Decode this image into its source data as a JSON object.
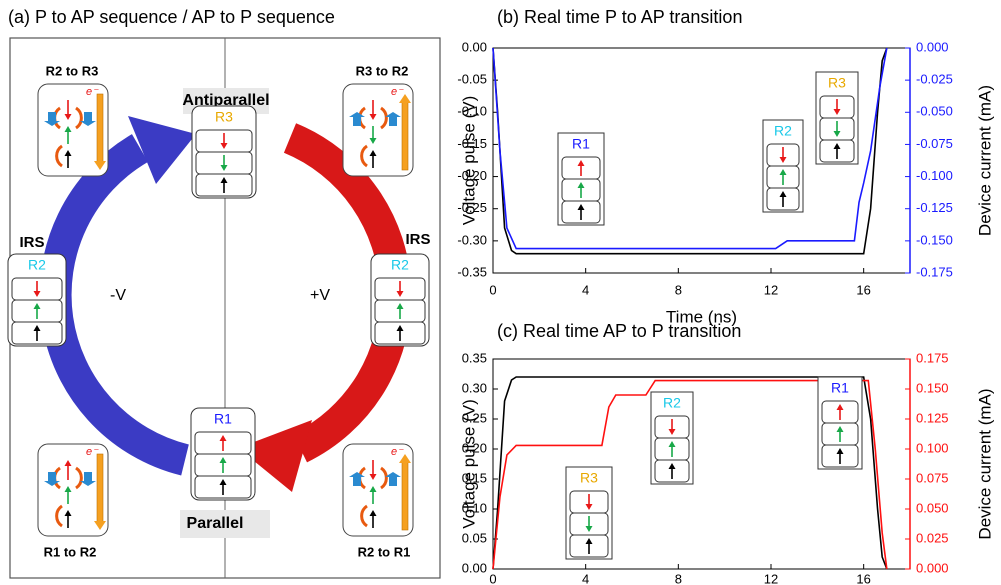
{
  "panel_a": {
    "title": "(a) P to AP sequence / AP to P sequence",
    "states": [
      "Antiparallel",
      "Parallel"
    ],
    "stack_labels": [
      "R3",
      "R2",
      "R2",
      "R1"
    ],
    "side_labels": [
      "IRS",
      "IRS"
    ],
    "bias_labels": [
      "-V",
      "+V"
    ],
    "transitions": [
      "R2 to R3",
      "R3 to R2",
      "R1 to R2",
      "R2 to R1"
    ],
    "electron_labels": [
      "e⁻",
      "e⁻",
      "e⁻",
      "e⁻"
    ]
  },
  "chart_data": [
    {
      "type": "line",
      "title": "(b) Real time P to AP transition",
      "xlabel": "Time (ns)",
      "ylabel": "Voltage pulse (V)",
      "y2label": "Device current (mA)",
      "xlim": [
        0,
        18
      ],
      "xticks": [
        0,
        4,
        8,
        12,
        16
      ],
      "ylim": [
        -0.35,
        0
      ],
      "yticks": [
        {
          "value": 0,
          "label": "0.00"
        },
        -0.05,
        {
          "value": -0.1,
          "label": "-0.10"
        },
        -0.15,
        {
          "value": -0.2,
          "label": "-0.20"
        },
        -0.25,
        {
          "value": -0.3,
          "label": "-0.30"
        },
        -0.35
      ],
      "y2lim": [
        -0.175,
        0
      ],
      "y2ticks": [
        {
          "value": 0,
          "label": "0.000"
        },
        -0.025,
        {
          "value": -0.05,
          "label": "-0.050"
        },
        -0.075,
        {
          "value": -0.1,
          "label": "-0.100"
        },
        -0.125,
        {
          "value": -0.15,
          "label": "-0.150"
        },
        -0.175
      ],
      "series": [
        {
          "color": "#000000",
          "x": [
            0,
            0.2,
            0.5,
            0.8,
            1.0,
            16.0,
            16.3,
            16.6,
            16.8,
            17.0
          ],
          "values": [
            0,
            -0.1,
            -0.28,
            -0.315,
            -0.32,
            -0.32,
            -0.25,
            -0.1,
            -0.02,
            0
          ]
        },
        {
          "color": "#1a1aff",
          "axis": "y2",
          "x": [
            0,
            0.3,
            0.6,
            1.0,
            12.2,
            12.7,
            15.6,
            15.8,
            16.0,
            16.3,
            16.7,
            17.0
          ],
          "values": [
            0,
            -0.08,
            -0.14,
            -0.156,
            -0.156,
            -0.15,
            -0.15,
            -0.12,
            -0.105,
            -0.08,
            -0.03,
            0
          ]
        }
      ],
      "annotations": [
        "R1",
        "R2",
        "R3"
      ]
    },
    {
      "type": "line",
      "title": "(c) Real time AP to P transition",
      "ylabel": "Voltage pulse (V)",
      "y2label": "Device current (mA)",
      "xlim": [
        0,
        18
      ],
      "xticks": [
        0,
        4,
        8,
        12,
        16
      ],
      "ylim": [
        0,
        0.35
      ],
      "yticks": [
        {
          "value": 0,
          "label": "0.00"
        },
        0.05,
        {
          "value": 0.1,
          "label": "0.10"
        },
        0.15,
        {
          "value": 0.2,
          "label": "0.20"
        },
        0.25,
        {
          "value": 0.3,
          "label": "0.30"
        },
        0.35
      ],
      "y2lim": [
        0,
        0.175
      ],
      "y2ticks": [
        {
          "value": 0,
          "label": "0.000"
        },
        0.025,
        {
          "value": 0.05,
          "label": "0.050"
        },
        0.075,
        {
          "value": 0.1,
          "label": "0.100"
        },
        0.125,
        {
          "value": 0.15,
          "label": "0.150"
        },
        0.175
      ],
      "series": [
        {
          "color": "#000000",
          "x": [
            0,
            0.2,
            0.5,
            0.8,
            1.0,
            16.0,
            16.3,
            16.6,
            16.8,
            17.0
          ],
          "values": [
            0,
            0.1,
            0.28,
            0.315,
            0.32,
            0.32,
            0.25,
            0.1,
            0.02,
            0
          ]
        },
        {
          "color": "#ff1010",
          "axis": "y2",
          "x": [
            0,
            0.3,
            0.6,
            1.0,
            4.7,
            5.0,
            5.3,
            6.6,
            7.0,
            16.2,
            16.5,
            16.8,
            17.0
          ],
          "values": [
            0,
            0.06,
            0.095,
            0.103,
            0.103,
            0.135,
            0.145,
            0.145,
            0.157,
            0.157,
            0.1,
            0.03,
            0
          ]
        }
      ],
      "annotations": [
        "R3",
        "R2",
        "R1"
      ]
    }
  ]
}
